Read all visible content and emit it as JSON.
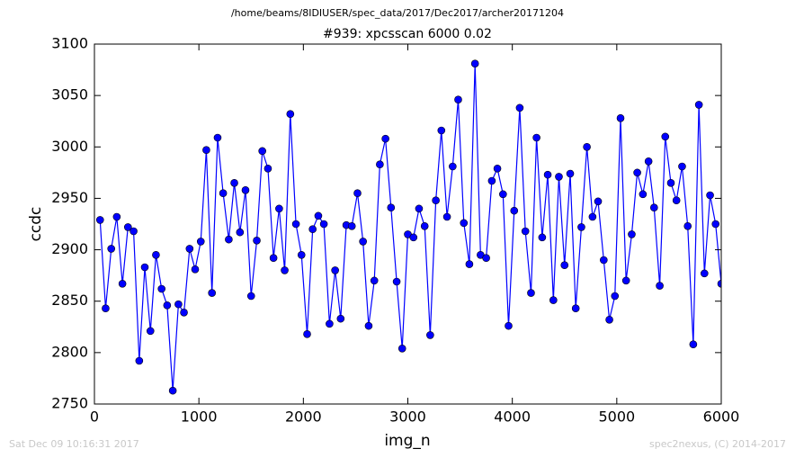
{
  "chart_data": {
    "type": "line",
    "suptitle": "/home/beams/8IDIUSER/spec_data/2017/Dec2017/archer20171204",
    "title": "#939: xpcsscan 6000 0.02",
    "x_label": "img_n",
    "y_label": "ccdc",
    "footer_left": "Sat Dec 09 10:16:31 2017",
    "footer_right": "spec2nexus, (C) 2014-2017",
    "x": [
      54,
      107,
      161,
      214,
      268,
      321,
      375,
      429,
      482,
      536,
      589,
      643,
      696,
      750,
      804,
      857,
      911,
      964,
      1018,
      1071,
      1125,
      1179,
      1232,
      1286,
      1339,
      1393,
      1446,
      1500,
      1554,
      1607,
      1661,
      1714,
      1768,
      1821,
      1875,
      1929,
      1982,
      2036,
      2089,
      2143,
      2196,
      2250,
      2304,
      2357,
      2411,
      2464,
      2518,
      2571,
      2625,
      2679,
      2732,
      2786,
      2839,
      2893,
      2946,
      3000,
      3054,
      3107,
      3161,
      3214,
      3268,
      3321,
      3375,
      3429,
      3482,
      3536,
      3589,
      3643,
      3696,
      3750,
      3804,
      3857,
      3911,
      3964,
      4018,
      4071,
      4125,
      4179,
      4232,
      4286,
      4339,
      4393,
      4446,
      4500,
      4554,
      4607,
      4661,
      4714,
      4768,
      4821,
      4875,
      4929,
      4982,
      5036,
      5089,
      5143,
      5196,
      5250,
      5304,
      5357,
      5411,
      5464,
      5518,
      5571,
      5625,
      5679,
      5732,
      5786,
      5839,
      5893,
      5946,
      6000
    ],
    "series": [
      {
        "color": "#0000ff",
        "values": [
          2929,
          2843,
          2901,
          2932,
          2867,
          2922,
          2918,
          2792,
          2883,
          2821,
          2895,
          2862,
          2846,
          2763,
          2847,
          2839,
          2901,
          2881,
          2908,
          2997,
          2858,
          3009,
          2955,
          2910,
          2965,
          2917,
          2958,
          2855,
          2909,
          2996,
          2979,
          2892,
          2940,
          2880,
          3032,
          2925,
          2895,
          2818,
          2920,
          2933,
          2925,
          2828,
          2880,
          2833,
          2924,
          2923,
          2955,
          2908,
          2826,
          2870,
          2983,
          3008,
          2941,
          2869,
          2804,
          2915,
          2912,
          2940,
          2923,
          2817,
          2948,
          3016,
          2932,
          2981,
          3046,
          2926,
          2886,
          3081,
          2895,
          2892,
          2967,
          2979,
          2954,
          2826,
          2938,
          3038,
          2918,
          2858,
          3009,
          2912,
          2973,
          2851,
          2971,
          2885,
          2974,
          2843,
          2922,
          3000,
          2932,
          2947,
          2890,
          2832,
          2855,
          3028,
          2870,
          2915,
          2975,
          2954,
          2986,
          2941,
          2865,
          3010,
          2965,
          2948,
          2981,
          2923,
          2808,
          3041,
          2877,
          2953,
          2925,
          2867
        ]
      }
    ],
    "xlim": [
      0,
      6000
    ],
    "xticks": [
      0,
      1000,
      2000,
      3000,
      4000,
      5000,
      6000
    ],
    "ylim": [
      2750,
      3100
    ],
    "yticks": [
      2750,
      2800,
      2850,
      2900,
      2950,
      3000,
      3050,
      3100
    ]
  }
}
